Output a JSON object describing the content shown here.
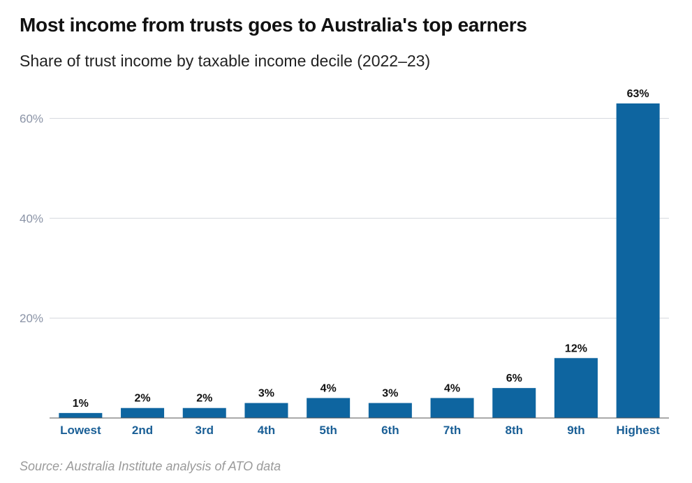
{
  "chart_data": {
    "type": "bar",
    "title": "Most income from trusts goes to Australia's top earners",
    "subtitle": "Share of trust income by taxable income decile (2022–23)",
    "categories": [
      "Lowest",
      "2nd",
      "3rd",
      "4th",
      "5th",
      "6th",
      "7th",
      "8th",
      "9th",
      "Highest"
    ],
    "values": [
      1,
      2,
      2,
      3,
      4,
      3,
      4,
      6,
      12,
      63
    ],
    "data_labels": [
      "1%",
      "2%",
      "2%",
      "3%",
      "4%",
      "3%",
      "4%",
      "6%",
      "12%",
      "63%"
    ],
    "yticks": [
      20,
      40,
      60
    ],
    "ytick_labels": [
      "20%",
      "40%",
      "60%"
    ],
    "ylim": [
      0,
      63
    ],
    "grid": true,
    "legend": "none",
    "bar_color": "#0e65a0",
    "source": "Source: Australia Institute analysis of ATO data"
  }
}
